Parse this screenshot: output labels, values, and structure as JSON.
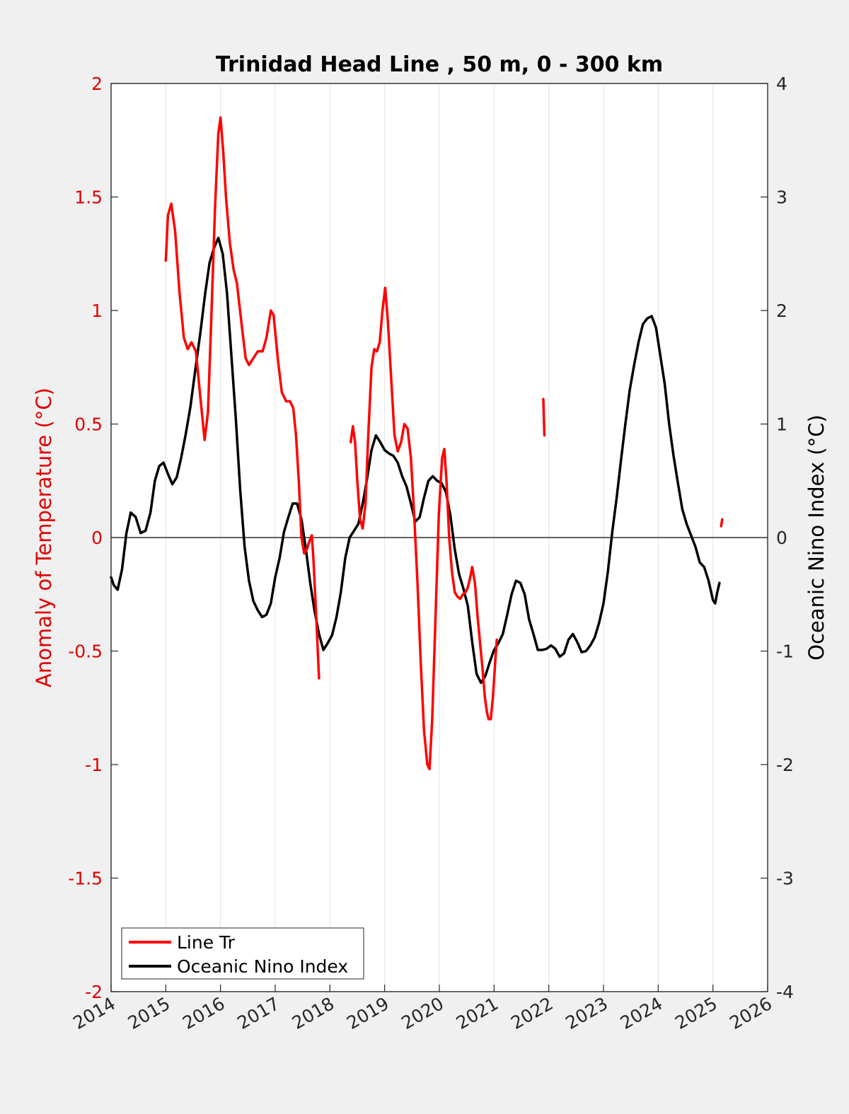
{
  "chart_data": {
    "type": "line",
    "title": "Trinidad Head Line , 50 m, 0 - 300 km",
    "ylabel_left": "Anomaly of Temperature (°C)",
    "ylabel_right": "Oceanic Nino Index (°C)",
    "xlim": [
      2014,
      2026
    ],
    "ylim_left": [
      -2,
      2
    ],
    "ylim_right": [
      -4,
      4
    ],
    "xticks": [
      "2014",
      "2015",
      "2016",
      "2017",
      "2018",
      "2019",
      "2020",
      "2021",
      "2022",
      "2023",
      "2024",
      "2025",
      "2026"
    ],
    "yticks_left": [
      "-2",
      "-1.5",
      "-1",
      "-0.5",
      "0",
      "0.5",
      "1",
      "1.5",
      "2"
    ],
    "yticks_right": [
      "-4",
      "-3",
      "-2",
      "-1",
      "0",
      "1",
      "2",
      "3",
      "4"
    ],
    "grid": "vertical",
    "legend_position": "bottom-left",
    "colors": {
      "temperature": "#ff0000",
      "oni": "#000000",
      "left_axis": "#e00000"
    },
    "series": [
      {
        "name": "Line Tr",
        "axis": "left",
        "segments": [
          [
            [
              2015.0,
              1.22
            ],
            [
              2015.04,
              1.42
            ],
            [
              2015.1,
              1.47
            ],
            [
              2015.17,
              1.35
            ],
            [
              2015.25,
              1.08
            ],
            [
              2015.33,
              0.88
            ],
            [
              2015.4,
              0.83
            ],
            [
              2015.47,
              0.86
            ],
            [
              2015.55,
              0.82
            ],
            [
              2015.63,
              0.62
            ],
            [
              2015.71,
              0.43
            ],
            [
              2015.77,
              0.55
            ],
            [
              2015.83,
              0.95
            ],
            [
              2015.9,
              1.45
            ],
            [
              2015.96,
              1.78
            ],
            [
              2016.0,
              1.85
            ],
            [
              2016.05,
              1.7
            ],
            [
              2016.1,
              1.5
            ],
            [
              2016.17,
              1.3
            ],
            [
              2016.24,
              1.18
            ],
            [
              2016.3,
              1.12
            ],
            [
              2016.38,
              0.95
            ],
            [
              2016.46,
              0.79
            ],
            [
              2016.52,
              0.76
            ],
            [
              2016.6,
              0.79
            ],
            [
              2016.68,
              0.82
            ],
            [
              2016.77,
              0.82
            ],
            [
              2016.84,
              0.88
            ],
            [
              2016.92,
              1.0
            ],
            [
              2016.97,
              0.98
            ],
            [
              2017.05,
              0.78
            ],
            [
              2017.12,
              0.64
            ],
            [
              2017.2,
              0.6
            ],
            [
              2017.27,
              0.6
            ],
            [
              2017.33,
              0.57
            ],
            [
              2017.38,
              0.45
            ],
            [
              2017.43,
              0.25
            ],
            [
              2017.48,
              0.0
            ],
            [
              2017.53,
              -0.07
            ],
            [
              2017.58,
              -0.05
            ],
            [
              2017.62,
              -0.02
            ],
            [
              2017.67,
              0.01
            ],
            [
              2017.7,
              -0.1
            ],
            [
              2017.75,
              -0.35
            ],
            [
              2017.8,
              -0.62
            ]
          ],
          [
            [
              2018.38,
              0.42
            ],
            [
              2018.42,
              0.49
            ],
            [
              2018.46,
              0.42
            ],
            [
              2018.5,
              0.25
            ],
            [
              2018.55,
              0.08
            ],
            [
              2018.6,
              0.04
            ],
            [
              2018.65,
              0.15
            ],
            [
              2018.7,
              0.45
            ],
            [
              2018.76,
              0.75
            ],
            [
              2018.81,
              0.83
            ],
            [
              2018.86,
              0.82
            ],
            [
              2018.91,
              0.86
            ],
            [
              2018.96,
              1.0
            ],
            [
              2019.01,
              1.1
            ],
            [
              2019.06,
              0.95
            ],
            [
              2019.12,
              0.7
            ],
            [
              2019.18,
              0.45
            ],
            [
              2019.24,
              0.38
            ],
            [
              2019.3,
              0.42
            ],
            [
              2019.36,
              0.5
            ],
            [
              2019.42,
              0.48
            ],
            [
              2019.48,
              0.35
            ],
            [
              2019.54,
              0.1
            ],
            [
              2019.6,
              -0.2
            ],
            [
              2019.66,
              -0.55
            ],
            [
              2019.72,
              -0.85
            ],
            [
              2019.78,
              -1.0
            ],
            [
              2019.82,
              -1.02
            ],
            [
              2019.87,
              -0.8
            ],
            [
              2019.93,
              -0.35
            ],
            [
              2019.99,
              0.1
            ],
            [
              2020.05,
              0.35
            ],
            [
              2020.09,
              0.39
            ],
            [
              2020.13,
              0.25
            ],
            [
              2020.18,
              0.0
            ],
            [
              2020.23,
              -0.15
            ],
            [
              2020.28,
              -0.24
            ],
            [
              2020.33,
              -0.26
            ],
            [
              2020.38,
              -0.27
            ],
            [
              2020.43,
              -0.25
            ],
            [
              2020.48,
              -0.24
            ],
            [
              2020.52,
              -0.22
            ],
            [
              2020.56,
              -0.18
            ],
            [
              2020.6,
              -0.13
            ],
            [
              2020.65,
              -0.2
            ],
            [
              2020.7,
              -0.35
            ],
            [
              2020.75,
              -0.48
            ],
            [
              2020.79,
              -0.58
            ],
            [
              2020.83,
              -0.7
            ],
            [
              2020.87,
              -0.77
            ],
            [
              2020.9,
              -0.8
            ],
            [
              2020.94,
              -0.8
            ],
            [
              2020.98,
              -0.7
            ],
            [
              2021.02,
              -0.55
            ],
            [
              2021.05,
              -0.45
            ]
          ]
        ],
        "points": [
          [
            2021.9,
            0.61
          ],
          [
            2021.92,
            0.45
          ],
          [
            2025.15,
            0.05
          ],
          [
            2025.17,
            0.08
          ]
        ]
      },
      {
        "name": "Oceanic Nino Index",
        "axis": "right",
        "values": [
          [
            2014.0,
            -0.35
          ],
          [
            2014.05,
            -0.42
          ],
          [
            2014.12,
            -0.46
          ],
          [
            2014.2,
            -0.28
          ],
          [
            2014.28,
            0.04
          ],
          [
            2014.36,
            0.22
          ],
          [
            2014.45,
            0.18
          ],
          [
            2014.54,
            0.04
          ],
          [
            2014.63,
            0.06
          ],
          [
            2014.72,
            0.22
          ],
          [
            2014.8,
            0.5
          ],
          [
            2014.88,
            0.63
          ],
          [
            2014.96,
            0.66
          ],
          [
            2015.04,
            0.56
          ],
          [
            2015.12,
            0.47
          ],
          [
            2015.2,
            0.53
          ],
          [
            2015.28,
            0.7
          ],
          [
            2015.36,
            0.9
          ],
          [
            2015.45,
            1.15
          ],
          [
            2015.54,
            1.48
          ],
          [
            2015.63,
            1.8
          ],
          [
            2015.72,
            2.15
          ],
          [
            2015.8,
            2.42
          ],
          [
            2015.88,
            2.55
          ],
          [
            2015.96,
            2.64
          ],
          [
            2016.04,
            2.5
          ],
          [
            2016.12,
            2.15
          ],
          [
            2016.2,
            1.6
          ],
          [
            2016.28,
            1.05
          ],
          [
            2016.36,
            0.42
          ],
          [
            2016.44,
            -0.08
          ],
          [
            2016.52,
            -0.38
          ],
          [
            2016.6,
            -0.56
          ],
          [
            2016.68,
            -0.64
          ],
          [
            2016.76,
            -0.7
          ],
          [
            2016.84,
            -0.68
          ],
          [
            2016.92,
            -0.58
          ],
          [
            2017.0,
            -0.35
          ],
          [
            2017.08,
            -0.18
          ],
          [
            2017.16,
            0.05
          ],
          [
            2017.24,
            0.18
          ],
          [
            2017.32,
            0.3
          ],
          [
            2017.4,
            0.3
          ],
          [
            2017.48,
            0.16
          ],
          [
            2017.56,
            -0.1
          ],
          [
            2017.64,
            -0.4
          ],
          [
            2017.72,
            -0.65
          ],
          [
            2017.8,
            -0.85
          ],
          [
            2017.88,
            -0.99
          ],
          [
            2017.96,
            -0.93
          ],
          [
            2018.04,
            -0.86
          ],
          [
            2018.12,
            -0.7
          ],
          [
            2018.2,
            -0.48
          ],
          [
            2018.28,
            -0.18
          ],
          [
            2018.36,
            0.0
          ],
          [
            2018.44,
            0.06
          ],
          [
            2018.52,
            0.12
          ],
          [
            2018.6,
            0.3
          ],
          [
            2018.68,
            0.52
          ],
          [
            2018.76,
            0.77
          ],
          [
            2018.84,
            0.9
          ],
          [
            2018.92,
            0.84
          ],
          [
            2019.0,
            0.77
          ],
          [
            2019.08,
            0.74
          ],
          [
            2019.16,
            0.72
          ],
          [
            2019.24,
            0.66
          ],
          [
            2019.32,
            0.54
          ],
          [
            2019.4,
            0.45
          ],
          [
            2019.48,
            0.3
          ],
          [
            2019.56,
            0.14
          ],
          [
            2019.64,
            0.18
          ],
          [
            2019.72,
            0.35
          ],
          [
            2019.8,
            0.5
          ],
          [
            2019.88,
            0.54
          ],
          [
            2019.96,
            0.5
          ],
          [
            2020.04,
            0.48
          ],
          [
            2020.12,
            0.4
          ],
          [
            2020.2,
            0.2
          ],
          [
            2020.28,
            -0.1
          ],
          [
            2020.36,
            -0.32
          ],
          [
            2020.44,
            -0.45
          ],
          [
            2020.52,
            -0.6
          ],
          [
            2020.6,
            -0.92
          ],
          [
            2020.68,
            -1.2
          ],
          [
            2020.76,
            -1.28
          ],
          [
            2020.84,
            -1.22
          ],
          [
            2020.92,
            -1.1
          ],
          [
            2021.0,
            -0.99
          ],
          [
            2021.08,
            -0.93
          ],
          [
            2021.16,
            -0.85
          ],
          [
            2021.24,
            -0.68
          ],
          [
            2021.32,
            -0.5
          ],
          [
            2021.4,
            -0.38
          ],
          [
            2021.48,
            -0.4
          ],
          [
            2021.56,
            -0.5
          ],
          [
            2021.64,
            -0.72
          ],
          [
            2021.72,
            -0.85
          ],
          [
            2021.8,
            -0.99
          ],
          [
            2021.88,
            -0.99
          ],
          [
            2021.96,
            -0.98
          ],
          [
            2022.04,
            -0.95
          ],
          [
            2022.12,
            -0.98
          ],
          [
            2022.2,
            -1.05
          ],
          [
            2022.28,
            -1.02
          ],
          [
            2022.36,
            -0.9
          ],
          [
            2022.44,
            -0.85
          ],
          [
            2022.52,
            -0.92
          ],
          [
            2022.6,
            -1.01
          ],
          [
            2022.68,
            -1.0
          ],
          [
            2022.76,
            -0.95
          ],
          [
            2022.84,
            -0.88
          ],
          [
            2022.92,
            -0.75
          ],
          [
            2023.0,
            -0.58
          ],
          [
            2023.08,
            -0.3
          ],
          [
            2023.16,
            0.05
          ],
          [
            2023.24,
            0.35
          ],
          [
            2023.32,
            0.68
          ],
          [
            2023.4,
            1.0
          ],
          [
            2023.48,
            1.3
          ],
          [
            2023.56,
            1.52
          ],
          [
            2023.64,
            1.72
          ],
          [
            2023.72,
            1.88
          ],
          [
            2023.8,
            1.93
          ],
          [
            2023.88,
            1.95
          ],
          [
            2023.96,
            1.85
          ],
          [
            2024.04,
            1.6
          ],
          [
            2024.12,
            1.35
          ],
          [
            2024.2,
            1.0
          ],
          [
            2024.28,
            0.72
          ],
          [
            2024.36,
            0.48
          ],
          [
            2024.44,
            0.25
          ],
          [
            2024.52,
            0.12
          ],
          [
            2024.6,
            0.02
          ],
          [
            2024.68,
            -0.08
          ],
          [
            2024.76,
            -0.22
          ],
          [
            2024.84,
            -0.26
          ],
          [
            2024.92,
            -0.38
          ],
          [
            2025.0,
            -0.55
          ],
          [
            2025.04,
            -0.58
          ],
          [
            2025.08,
            -0.48
          ],
          [
            2025.12,
            -0.4
          ]
        ]
      }
    ]
  }
}
